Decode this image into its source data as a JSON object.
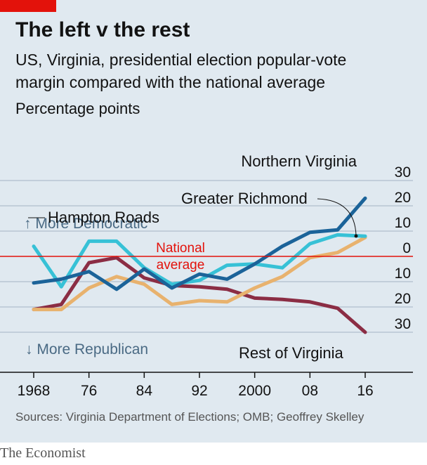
{
  "header": {
    "title": "The left v the rest",
    "subtitle_line1": "US, Virginia, presidential election popular-vote",
    "subtitle_line2": "margin compared with the national average",
    "unit": "Percentage points"
  },
  "footer": {
    "source": "Sources: Virginia Department of Elections; OMB; Geoffrey Skelley",
    "brand": "The Economist"
  },
  "colors": {
    "background": "#e0e9f0",
    "grid": "#b7c6d2",
    "national": "#e3120b",
    "brand_red": "#e3120b"
  },
  "chart_data": {
    "type": "line",
    "x": [
      1968,
      1972,
      1976,
      1980,
      1984,
      1988,
      1992,
      1996,
      2000,
      2004,
      2008,
      2012,
      2016
    ],
    "xtick_labels": [
      "1968",
      "76",
      "84",
      "92",
      "2000",
      "08",
      "16"
    ],
    "xtick_values": [
      1968,
      1976,
      1984,
      1992,
      2000,
      2008,
      2016
    ],
    "ytick_labels": [
      "30",
      "20",
      "10",
      "0",
      "10",
      "20",
      "30"
    ],
    "ytick_values": [
      30,
      20,
      10,
      0,
      -10,
      -20,
      -30
    ],
    "ylim": [
      -30,
      30
    ],
    "xlim": [
      1967,
      2022
    ],
    "grid": true,
    "reference_line": {
      "value": 0,
      "label_line1": "National",
      "label_line2": "average"
    },
    "annotations": {
      "up": "↑ More Democratic",
      "down": "↓ More Republican"
    },
    "series": [
      {
        "name": "Rest of Virginia",
        "color": "#8b2d44",
        "values": [
          -21,
          -19,
          -2.5,
          -0.5,
          -8.5,
          -11.5,
          -12,
          -13,
          -16.5,
          -17,
          -18,
          -20.5,
          -30
        ]
      },
      {
        "name": "Greater Richmond",
        "color": "#e8b26e",
        "values": [
          -21,
          -21,
          -12.5,
          -8,
          -11,
          -19,
          -17.5,
          -18,
          -12.5,
          -8,
          -0.5,
          1.5,
          7.5
        ]
      },
      {
        "name": "Hampton Roads",
        "color": "#37c1d6",
        "values": [
          4,
          -12,
          6,
          6,
          -4.5,
          -11,
          -9.5,
          -3.5,
          -3,
          -4.5,
          5,
          8.5,
          8
        ]
      },
      {
        "name": "Northern Virginia",
        "color": "#1b6399",
        "values": [
          -10.5,
          -9,
          -6,
          -13,
          -5,
          -12.5,
          -7,
          -9,
          -3,
          4,
          9.5,
          10.5,
          23
        ]
      }
    ]
  }
}
